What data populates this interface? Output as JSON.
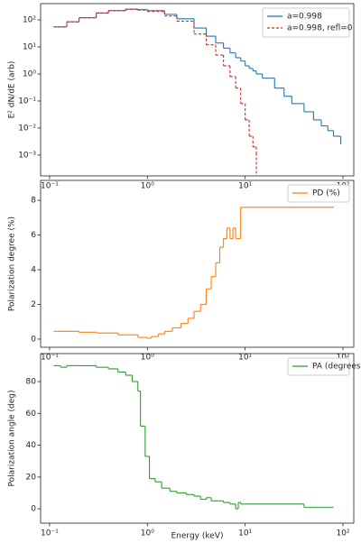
{
  "chart_data": [
    {
      "type": "line",
      "drawstyle": "steps-post",
      "xscale": "log",
      "yscale": "log",
      "ylabel": "E² dN/dE (arb)",
      "x": [
        0.11,
        0.15,
        0.2,
        0.3,
        0.4,
        0.6,
        0.8,
        1.0,
        1.5,
        2,
        3,
        4,
        5,
        6,
        7,
        8,
        9,
        10,
        11,
        12,
        13,
        15,
        20,
        25,
        30,
        40,
        50,
        60,
        70,
        80,
        95
      ],
      "series": [
        {
          "name": "a=0.998",
          "color": "#1f77b4",
          "linestyle": "solid",
          "values": [
            55,
            85,
            120,
            180,
            220,
            250,
            240,
            220,
            160,
            110,
            50,
            25,
            14,
            9,
            6,
            4,
            3,
            2,
            1.6,
            1.3,
            1.0,
            0.7,
            0.3,
            0.15,
            0.08,
            0.04,
            0.02,
            0.012,
            0.008,
            0.005,
            0.0025
          ]
        },
        {
          "name": "a=0.998, refl=0",
          "color": "#d62728",
          "linestyle": "dashed",
          "values": [
            55,
            85,
            120,
            180,
            220,
            245,
            230,
            205,
            140,
            90,
            30,
            12,
            5,
            2,
            0.8,
            0.3,
            0.08,
            0.02,
            0.005,
            0.002,
            0.0012,
            null,
            null,
            null,
            null,
            null,
            null,
            null,
            null,
            null,
            null
          ]
        }
      ],
      "xlim": [
        0.081,
        129
      ],
      "ylim": [
        0.00017,
        400
      ],
      "xticks": [
        {
          "value": 0.1,
          "label": "10⁻¹"
        },
        {
          "value": 1,
          "label": "10⁰"
        },
        {
          "value": 10,
          "label": "10¹"
        },
        {
          "value": 100,
          "label": "10²"
        }
      ],
      "yticks": [
        {
          "value": 0.001,
          "label": "10⁻³"
        },
        {
          "value": 0.01,
          "label": "10⁻²"
        },
        {
          "value": 0.1,
          "label": "10⁻¹"
        },
        {
          "value": 1,
          "label": "10⁰"
        },
        {
          "value": 10,
          "label": "10¹"
        },
        {
          "value": 100,
          "label": "10²"
        }
      ],
      "legend": "upper right"
    },
    {
      "type": "line",
      "drawstyle": "steps-post",
      "xscale": "log",
      "yscale": "linear",
      "ylabel": "Polarization degree (%)",
      "x": [
        0.11,
        0.2,
        0.3,
        0.5,
        0.8,
        1.0,
        1.1,
        1.3,
        1.5,
        1.8,
        2.2,
        2.6,
        3,
        3.5,
        4,
        4.5,
        5,
        5.5,
        6,
        6.5,
        7,
        7.5,
        8,
        9,
        40,
        80
      ],
      "series": [
        {
          "name": "PD (%)",
          "color": "#ff7f0e",
          "linestyle": "solid",
          "values": [
            0.45,
            0.4,
            0.35,
            0.25,
            0.1,
            0.05,
            0.15,
            0.3,
            0.45,
            0.65,
            0.9,
            1.2,
            1.6,
            2.0,
            2.9,
            3.6,
            4.4,
            5.3,
            5.8,
            6.4,
            5.8,
            6.4,
            5.8,
            7.6,
            7.6,
            7.65
          ]
        }
      ],
      "xlim": [
        0.081,
        129
      ],
      "ylim": [
        -0.47,
        9.15
      ],
      "xticks": [
        {
          "value": 0.1,
          "label": "10⁻¹"
        },
        {
          "value": 1,
          "label": "10⁰"
        },
        {
          "value": 10,
          "label": "10¹"
        },
        {
          "value": 100,
          "label": "10²"
        }
      ],
      "yticks": [
        0,
        2,
        4,
        6,
        8
      ],
      "legend": "upper right"
    },
    {
      "type": "line",
      "drawstyle": "steps-post",
      "xscale": "log",
      "yscale": "linear",
      "ylabel": "Polarization angle (deg)",
      "xlabel": "Energy (keV)",
      "x": [
        0.11,
        0.13,
        0.15,
        0.2,
        0.3,
        0.4,
        0.5,
        0.6,
        0.7,
        0.8,
        0.85,
        0.95,
        1.05,
        1.2,
        1.4,
        1.7,
        2,
        2.5,
        3,
        3.5,
        4,
        4.5,
        5,
        6,
        7,
        8,
        8.5,
        9,
        40,
        80
      ],
      "series": [
        {
          "name": "PA (degrees)",
          "color": "#2ca02c",
          "linestyle": "solid",
          "values": [
            90,
            89,
            90,
            90,
            89,
            88,
            86,
            84,
            80,
            74,
            52,
            33,
            19,
            17,
            13,
            11,
            10,
            9,
            8,
            6,
            7,
            5,
            5,
            4,
            3,
            0,
            4,
            3,
            1,
            1
          ]
        }
      ],
      "xlim": [
        0.081,
        129
      ],
      "ylim": [
        -9,
        97.6
      ],
      "xticks": [
        {
          "value": 0.1,
          "label": "10⁻¹"
        },
        {
          "value": 1,
          "label": "10⁰"
        },
        {
          "value": 10,
          "label": "10¹"
        },
        {
          "value": 100,
          "label": "10²"
        }
      ],
      "yticks": [
        0,
        20,
        40,
        60,
        80
      ],
      "legend": "upper right"
    }
  ]
}
